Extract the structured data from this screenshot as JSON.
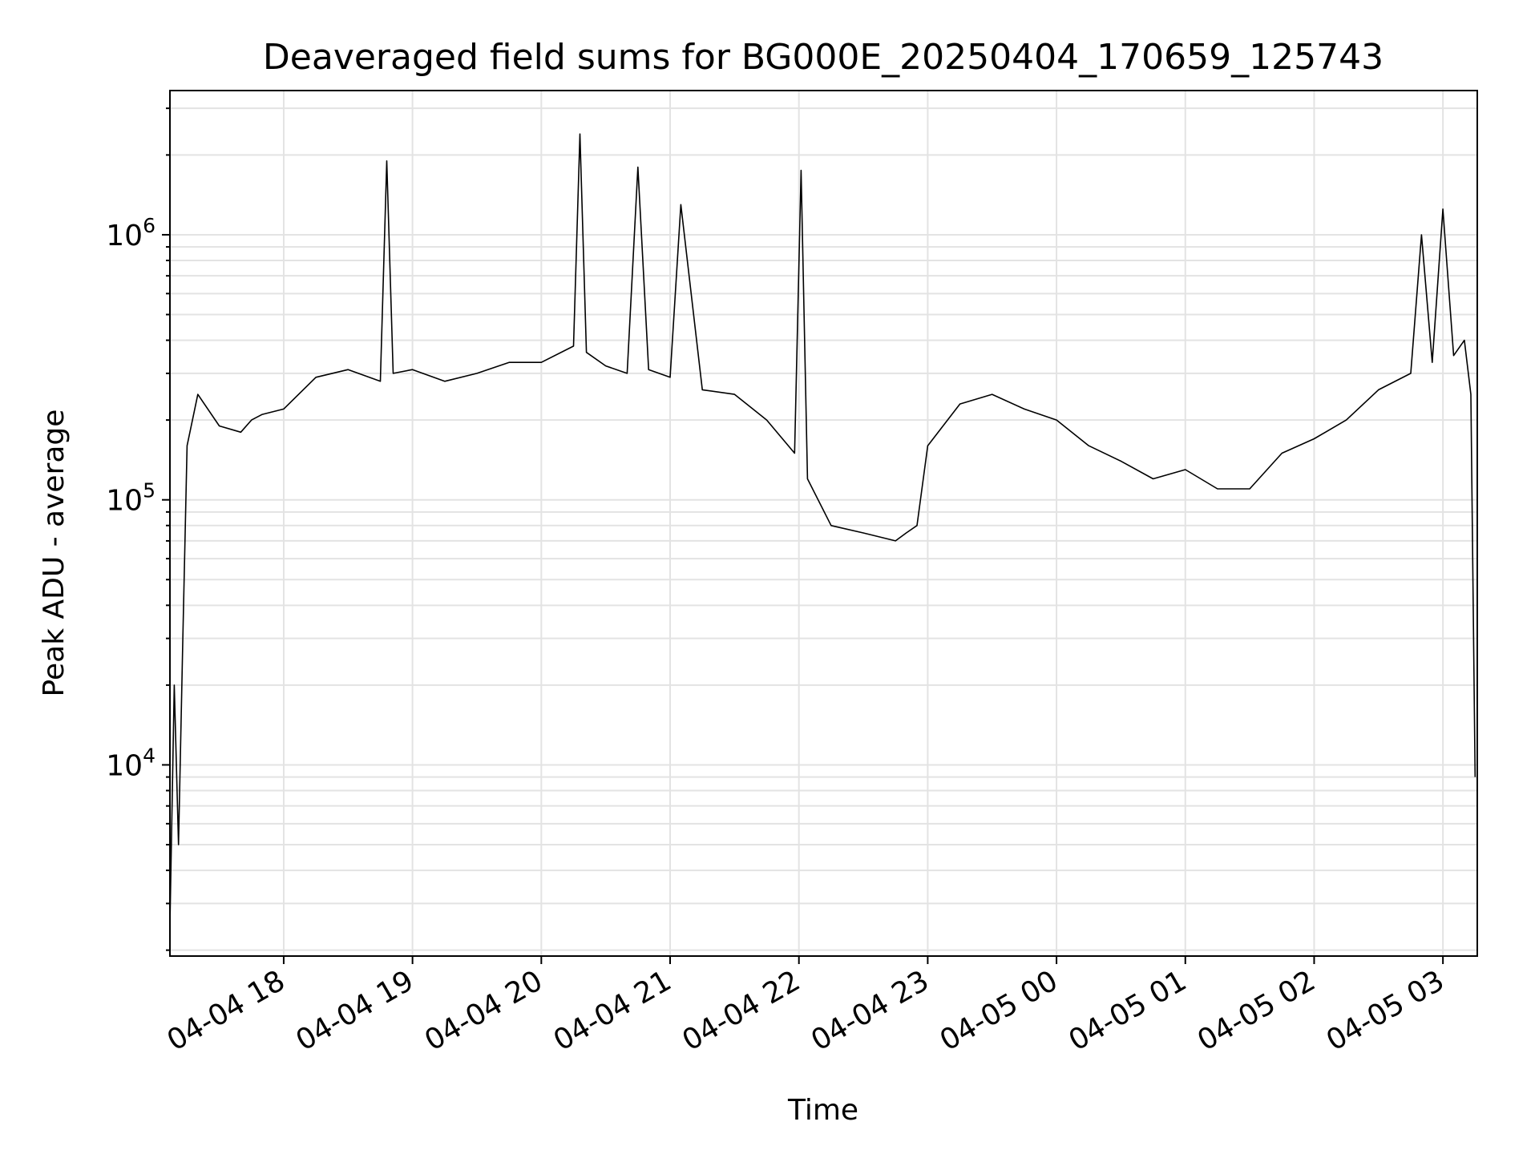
{
  "chart_data": {
    "type": "line",
    "title": "Deaveraged field sums for BG000E_20250404_170659_125743",
    "xlabel": "Time",
    "ylabel": "Peak ADU - average",
    "yscale": "log",
    "ylim": [
      1900,
      3500000
    ],
    "xlim": [
      "2025-04-04 17:07",
      "2025-04-05 03:16"
    ],
    "grid": true,
    "line_color": "#000000",
    "x_ticks": [
      "04-04 18",
      "04-04 19",
      "04-04 20",
      "04-04 21",
      "04-04 22",
      "04-04 23",
      "04-05 00",
      "04-05 01",
      "04-05 02",
      "04-05 03"
    ],
    "y_ticks": [
      {
        "label": "10",
        "exp": "4",
        "value": 10000
      },
      {
        "label": "10",
        "exp": "5",
        "value": 100000
      },
      {
        "label": "10",
        "exp": "6",
        "value": 1000000
      }
    ],
    "series": [
      {
        "x": [
          "2025-04-04 17:07",
          "2025-04-04 17:09",
          "2025-04-04 17:11",
          "2025-04-04 17:13",
          "2025-04-04 17:15",
          "2025-04-04 17:20",
          "2025-04-04 17:30",
          "2025-04-04 17:40",
          "2025-04-04 17:45",
          "2025-04-04 17:50",
          "2025-04-04 18:00",
          "2025-04-04 18:15",
          "2025-04-04 18:30",
          "2025-04-04 18:45",
          "2025-04-04 18:48",
          "2025-04-04 18:51",
          "2025-04-04 19:00",
          "2025-04-04 19:15",
          "2025-04-04 19:30",
          "2025-04-04 19:45",
          "2025-04-04 20:00",
          "2025-04-04 20:15",
          "2025-04-04 20:18",
          "2025-04-04 20:21",
          "2025-04-04 20:30",
          "2025-04-04 20:40",
          "2025-04-04 20:45",
          "2025-04-04 20:50",
          "2025-04-04 21:00",
          "2025-04-04 21:05",
          "2025-04-04 21:15",
          "2025-04-04 21:30",
          "2025-04-04 21:45",
          "2025-04-04 21:58",
          "2025-04-04 22:01",
          "2025-04-04 22:04",
          "2025-04-04 22:15",
          "2025-04-04 22:30",
          "2025-04-04 22:45",
          "2025-04-04 22:50",
          "2025-04-04 22:55",
          "2025-04-04 23:00",
          "2025-04-04 23:15",
          "2025-04-04 23:30",
          "2025-04-04 23:45",
          "2025-04-05 00:00",
          "2025-04-05 00:15",
          "2025-04-05 00:30",
          "2025-04-05 00:45",
          "2025-04-05 01:00",
          "2025-04-05 01:15",
          "2025-04-05 01:30",
          "2025-04-05 01:45",
          "2025-04-05 02:00",
          "2025-04-05 02:15",
          "2025-04-05 02:30",
          "2025-04-05 02:45",
          "2025-04-05 02:50",
          "2025-04-05 02:55",
          "2025-04-05 03:00",
          "2025-04-05 03:05",
          "2025-04-05 03:10",
          "2025-04-05 03:13",
          "2025-04-05 03:15"
        ],
        "y": [
          2500,
          20000,
          5000,
          30000,
          160000,
          250000,
          190000,
          180000,
          200000,
          210000,
          220000,
          290000,
          310000,
          280000,
          1900000,
          300000,
          310000,
          280000,
          300000,
          330000,
          330000,
          380000,
          2400000,
          360000,
          320000,
          300000,
          1800000,
          310000,
          290000,
          1300000,
          260000,
          250000,
          200000,
          150000,
          1750000,
          120000,
          80000,
          75000,
          70000,
          75000,
          80000,
          160000,
          230000,
          250000,
          220000,
          200000,
          160000,
          140000,
          120000,
          130000,
          110000,
          110000,
          150000,
          170000,
          200000,
          260000,
          300000,
          1000000,
          330000,
          1250000,
          350000,
          400000,
          250000,
          9000
        ]
      }
    ]
  }
}
